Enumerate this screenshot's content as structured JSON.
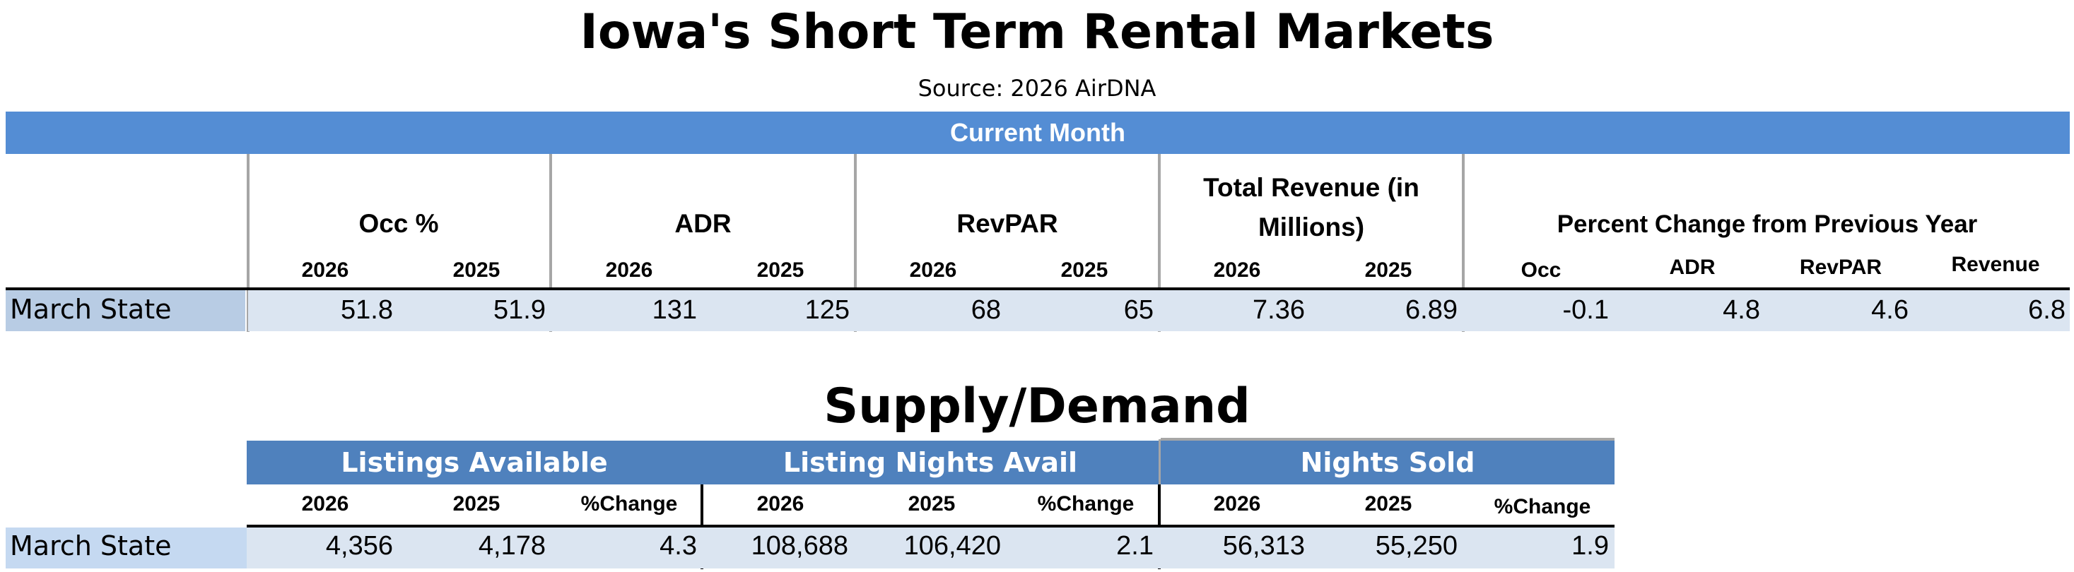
{
  "title": "Iowa's Short Term Rental Markets",
  "source": "Source:  2026 AirDNA",
  "current_month": {
    "banner": "Current Month",
    "groups": {
      "occ": "Occ %",
      "adr": "ADR",
      "revpar": "RevPAR",
      "revenue": "Total Revenue (in Millions)",
      "pct": "Percent Change from Previous Year"
    },
    "years": [
      "2026",
      "2025"
    ],
    "pct_cols": [
      "Occ",
      "ADR",
      "RevPAR",
      "Revenue"
    ],
    "row": {
      "label": "March State",
      "occ_2026": "51.8",
      "occ_2025": "51.9",
      "adr_2026": "131",
      "adr_2025": "125",
      "revpar_2026": "68",
      "revpar_2025": "65",
      "rev_2026": "7.36",
      "rev_2025": "6.89",
      "pct_occ": "-0.1",
      "pct_adr": "4.8",
      "pct_revpar": "4.6",
      "pct_revenue": "6.8"
    }
  },
  "supply_demand": {
    "title": "Supply/Demand",
    "groups": {
      "listings": "Listings Available",
      "nights_avail": "Listing Nights Avail",
      "nights_sold": "Nights Sold"
    },
    "cols": [
      "2026",
      "2025",
      "%Change"
    ],
    "row": {
      "label": "March State",
      "listings_2026": "4,356",
      "listings_2025": "4,178",
      "listings_change": "4.3",
      "nights_avail_2026": "108,688",
      "nights_avail_2025": "106,420",
      "nights_avail_change": "2.1",
      "nights_sold_2026": "56,313",
      "nights_sold_2025": "55,250",
      "nights_sold_change": "1.9"
    }
  },
  "colors": {
    "banner_blue": "#548dd4",
    "header_blue": "#4f81bd",
    "label_fill": "#b8cce4",
    "data_fill": "#dbe5f1"
  }
}
